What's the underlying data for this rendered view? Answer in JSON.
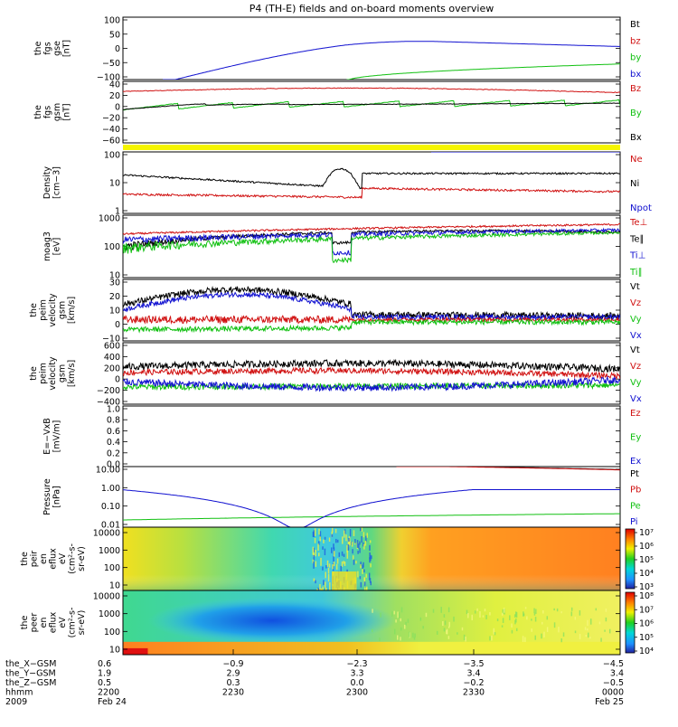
{
  "title": "P4 (TH-E) fields and on-board moments overview",
  "colors": {
    "black": "#000000",
    "red": "#d01010",
    "green": "#10c010",
    "blue": "#1010d0",
    "yellow": "#f5f500"
  },
  "chart_data": [
    {
      "id": "fgs_gse",
      "type": "line",
      "ylabel": [
        "the",
        "fgs",
        "gse",
        "[nT]"
      ],
      "yticks": [
        "100",
        "50",
        "0",
        "−50",
        "−100"
      ],
      "ylim": [
        -100,
        100
      ],
      "series": [
        {
          "name": "Bt",
          "color": "black"
        },
        {
          "name": "bz",
          "color": "red"
        },
        {
          "name": "by",
          "color": "green"
        },
        {
          "name": "bx",
          "color": "blue"
        }
      ]
    },
    {
      "id": "fgs_gsm",
      "type": "line",
      "ylabel": [
        "the",
        "fgs",
        "gsm",
        "[nT]"
      ],
      "yticks": [
        "40",
        "20",
        "0",
        "−20",
        "−40",
        "−60"
      ],
      "ylim": [
        -70,
        40
      ],
      "series": [
        {
          "name": "Bz",
          "color": "red"
        },
        {
          "name": "By",
          "color": "green"
        },
        {
          "name": "Bx",
          "color": "black"
        }
      ]
    },
    {
      "id": "flag",
      "type": "bar",
      "color": "yellow"
    },
    {
      "id": "density",
      "type": "line",
      "ylabel": [
        "Density",
        "[cm−3]"
      ],
      "yticks": [
        "100",
        "10",
        "1"
      ],
      "log": true,
      "series": [
        {
          "name": "Ne",
          "color": "red"
        },
        {
          "name": "Ni",
          "color": "black"
        },
        {
          "name": "Npot",
          "color": "blue"
        }
      ]
    },
    {
      "id": "temp",
      "type": "line",
      "ylabel": [
        "moag3",
        "[eV]"
      ],
      "yticks": [
        "1000",
        "100",
        "10"
      ],
      "log": true,
      "series": [
        {
          "name": "Te⊥",
          "color": "red"
        },
        {
          "name": "Te∥",
          "color": "black"
        },
        {
          "name": "Ti⊥",
          "color": "blue"
        },
        {
          "name": "Ti∥",
          "color": "green"
        }
      ]
    },
    {
      "id": "ve",
      "type": "line",
      "ylabel": [
        "the",
        "peim",
        "velocity",
        "gsm",
        "[km/s]"
      ],
      "yticks": [
        "30",
        "20",
        "10",
        "0",
        "−10"
      ],
      "ylim": [
        -17,
        32
      ],
      "series": [
        {
          "name": "Vt",
          "color": "black"
        },
        {
          "name": "Vz",
          "color": "red"
        },
        {
          "name": "Vy",
          "color": "green"
        },
        {
          "name": "Vx",
          "color": "blue"
        }
      ]
    },
    {
      "id": "vi",
      "type": "line",
      "ylabel": [
        "the",
        "peim",
        "velocity",
        "gsm",
        "[km/s]"
      ],
      "yticks": [
        "600",
        "400",
        "200",
        "0",
        "−200",
        "−400"
      ],
      "ylim": [
        -450,
        620
      ],
      "series": [
        {
          "name": "Vt",
          "color": "black"
        },
        {
          "name": "Vz",
          "color": "red"
        },
        {
          "name": "Vy",
          "color": "green"
        },
        {
          "name": "Vx",
          "color": "blue"
        }
      ]
    },
    {
      "id": "efield",
      "type": "line",
      "ylabel": [
        "E=−VxB",
        "[mV/m]"
      ],
      "yticks": [
        "1.0",
        "0.8",
        "0.6",
        "0.4",
        "0.2",
        "0.0"
      ],
      "ylim": [
        0,
        1
      ],
      "series": [
        {
          "name": "Ez",
          "color": "red"
        },
        {
          "name": "Ey",
          "color": "green"
        },
        {
          "name": "Ex",
          "color": "blue"
        }
      ]
    },
    {
      "id": "pressure",
      "type": "line",
      "ylabel": [
        "Pressure",
        "[nPa]"
      ],
      "yticks": [
        "10.00",
        "1.00",
        "0.10",
        "0.01"
      ],
      "log": true,
      "series": [
        {
          "name": "Pt",
          "color": "black"
        },
        {
          "name": "Pb",
          "color": "red"
        },
        {
          "name": "Pe",
          "color": "green"
        },
        {
          "name": "Pi",
          "color": "blue"
        }
      ]
    },
    {
      "id": "peir",
      "type": "heatmap",
      "ylabel": [
        "the",
        "peir",
        "en",
        "eflux",
        "eV",
        "(cm²-s-",
        "sr-eV)"
      ],
      "yticks": [
        "10000",
        "1000",
        "100",
        "10"
      ],
      "colorbar": [
        "10⁷",
        "10⁶",
        "10⁵",
        "10⁴",
        "10³"
      ]
    },
    {
      "id": "peer",
      "type": "heatmap",
      "ylabel": [
        "the",
        "peer",
        "en",
        "eflux",
        "eV",
        "(cm²-s-",
        "sr-eV)"
      ],
      "yticks": [
        "10000",
        "1000",
        "100",
        "10"
      ],
      "colorbar": [
        "10⁸",
        "10⁷",
        "10⁶",
        "10⁵",
        "10⁴"
      ]
    }
  ],
  "footer": {
    "rows": [
      {
        "label": "the_X−GSM",
        "values": [
          "0.6",
          "−0.9",
          "−2.3",
          "−3.5",
          "−4.5"
        ]
      },
      {
        "label": "the_Y−GSM",
        "values": [
          "1.9",
          "2.9",
          "3.3",
          "3.4",
          "3.4"
        ]
      },
      {
        "label": "the_Z−GSM",
        "values": [
          "0.5",
          "0.3",
          "0.0",
          "−0.2",
          "−0.5"
        ]
      },
      {
        "label": "hhmm",
        "values": [
          "2200",
          "2230",
          "2300",
          "2330",
          "0000"
        ]
      }
    ],
    "year": "2009",
    "date_start": "Feb 24",
    "date_end": "Feb 25"
  }
}
